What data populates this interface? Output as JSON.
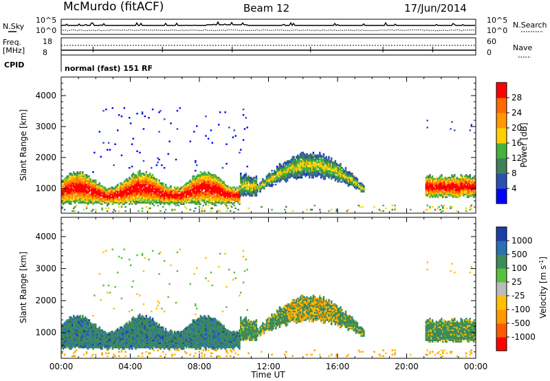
{
  "header": {
    "station": "McMurdo (fitACF)",
    "beam": "Beam 12",
    "date": "17/Jun/2014"
  },
  "noise_panel": {
    "left_label": "N.Sky",
    "right_label": "N.Search",
    "tick_top": "10^5",
    "tick_bottom": "10^0",
    "right_tick_top": "10^5",
    "right_tick_bottom": "10^0"
  },
  "freq_panel": {
    "left_label_1": "Freq.",
    "left_label_2": "[MHz]",
    "right_label": "Nave",
    "left_tick_top": "18",
    "left_tick_bottom": "8",
    "right_tick_top": "60",
    "right_tick_bottom": "0"
  },
  "cpid_panel": {
    "label": "CPID",
    "text": "normal (fast) 151 RF"
  },
  "chart_data": [
    {
      "type": "heatmap",
      "name": "power",
      "ylabel": "Slant Range [km]",
      "ylim": [
        200,
        4600
      ],
      "yticks": [
        "1000",
        "2000",
        "3000",
        "4000"
      ],
      "xlim": [
        0,
        24
      ],
      "colorbar_label": "Power [dB]",
      "colorbar_ticks": [
        "4",
        "8",
        "12",
        "16",
        "20",
        "24",
        "28"
      ],
      "colorbar_colors": [
        "#0000ff",
        "#2a50b4",
        "#3f7f5a",
        "#44b23c",
        "#ffd000",
        "#ff9900",
        "#ff6a00",
        "#ff0000"
      ]
    },
    {
      "type": "heatmap",
      "name": "velocity",
      "ylabel": "Slant Range [km]",
      "ylim": [
        200,
        4600
      ],
      "yticks": [
        "1000",
        "2000",
        "3000",
        "4000"
      ],
      "xlim": [
        0,
        24
      ],
      "xlabel": "Time UT",
      "xticks": [
        "00:00",
        "04:00",
        "08:00",
        "12:00",
        "16:00",
        "20:00",
        "00:00"
      ],
      "colorbar_label": "Velocity [m s^-1]",
      "colorbar_ticks": [
        "1000",
        "500",
        "100",
        "25",
        "-25",
        "-100",
        "-500",
        "-1000"
      ],
      "colorbar_colors": [
        "#1c3fa6",
        "#2a70b4",
        "#3f8a5a",
        "#58c23c",
        "#bbbbbb",
        "#ffc000",
        "#ff9900",
        "#ff5a00",
        "#ff0000"
      ]
    }
  ]
}
